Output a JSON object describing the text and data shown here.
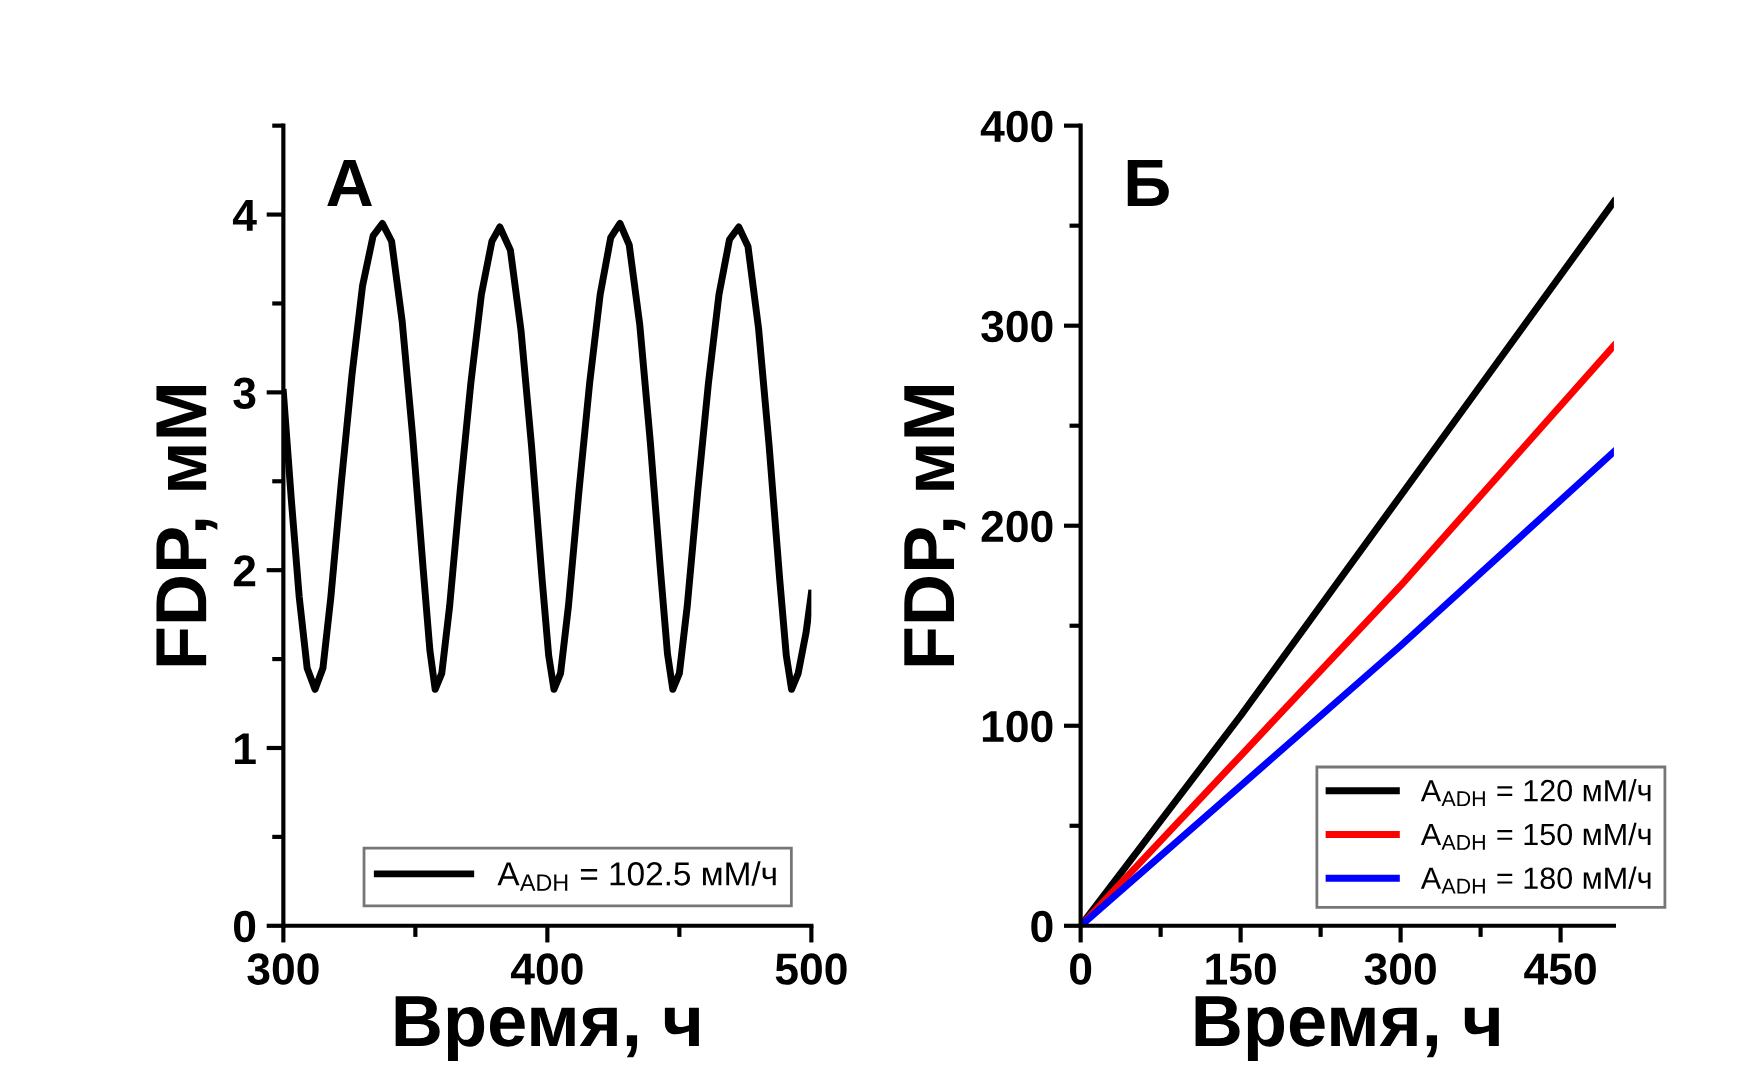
{
  "chart_data": [
    {
      "type": "line",
      "xlabel": "Время, ч",
      "ylabel": "FDP, мМ",
      "annotations": [
        "А"
      ],
      "xlim": [
        300,
        500
      ],
      "xticks": [
        300,
        400,
        500
      ],
      "ylim": [
        0,
        4.5
      ],
      "yticks": [
        0,
        1,
        2,
        3,
        4
      ],
      "grid": false,
      "legend": "bottom right",
      "series": [
        {
          "name": "A$_{ADH}$ = 102.5 мМ/ч",
          "color": "#000000",
          "x": [
            300,
            303,
            306,
            309,
            312,
            315,
            318,
            322,
            326,
            330,
            334,
            337.5,
            341,
            345,
            349,
            353,
            355.5,
            357.5,
            360,
            363,
            367,
            371,
            375,
            379,
            382,
            386,
            390,
            394,
            398,
            400.5,
            402.5,
            405,
            408,
            412,
            416,
            420,
            424,
            427.5,
            431,
            435,
            439,
            443,
            445.5,
            447.5,
            450,
            453,
            457,
            461,
            465,
            469,
            472.5,
            476,
            480,
            484,
            488,
            490.5,
            492.5,
            495,
            498,
            500
          ],
          "values": [
            3.0,
            2.4,
            1.85,
            1.45,
            1.33,
            1.45,
            1.85,
            2.5,
            3.1,
            3.6,
            3.88,
            3.95,
            3.85,
            3.4,
            2.75,
            2.0,
            1.55,
            1.33,
            1.42,
            1.8,
            2.45,
            3.05,
            3.55,
            3.85,
            3.93,
            3.8,
            3.35,
            2.7,
            1.95,
            1.52,
            1.33,
            1.42,
            1.8,
            2.45,
            3.05,
            3.55,
            3.87,
            3.95,
            3.83,
            3.38,
            2.72,
            1.97,
            1.53,
            1.33,
            1.42,
            1.8,
            2.45,
            3.05,
            3.55,
            3.86,
            3.93,
            3.82,
            3.36,
            2.7,
            1.95,
            1.52,
            1.33,
            1.42,
            1.65,
            1.87
          ]
        }
      ]
    },
    {
      "type": "line",
      "xlabel": "Время, ч",
      "ylabel": "FDP, мМ",
      "annotations": [
        "Б"
      ],
      "xlim": [
        0,
        500
      ],
      "xticks": [
        0,
        150,
        300,
        450
      ],
      "ylim": [
        0,
        400
      ],
      "yticks": [
        0,
        100,
        200,
        300,
        400
      ],
      "grid": false,
      "legend": "bottom right",
      "series": [
        {
          "name": "A$_{ADH}$ = 120 мМ/ч",
          "color": "#000000",
          "x": [
            0,
            150,
            300,
            500
          ],
          "values": [
            0,
            105,
            215,
            362
          ]
        },
        {
          "name": "A$_{ADH}$ = 150 мМ/ч",
          "color": "#ff0000",
          "x": [
            0,
            150,
            300,
            500
          ],
          "values": [
            0,
            85,
            170,
            290
          ]
        },
        {
          "name": "A$_{ADH}$ = 180 мМ/ч",
          "color": "#0000ff",
          "x": [
            0,
            150,
            300,
            500
          ],
          "values": [
            0,
            70,
            140,
            237
          ]
        }
      ]
    }
  ]
}
